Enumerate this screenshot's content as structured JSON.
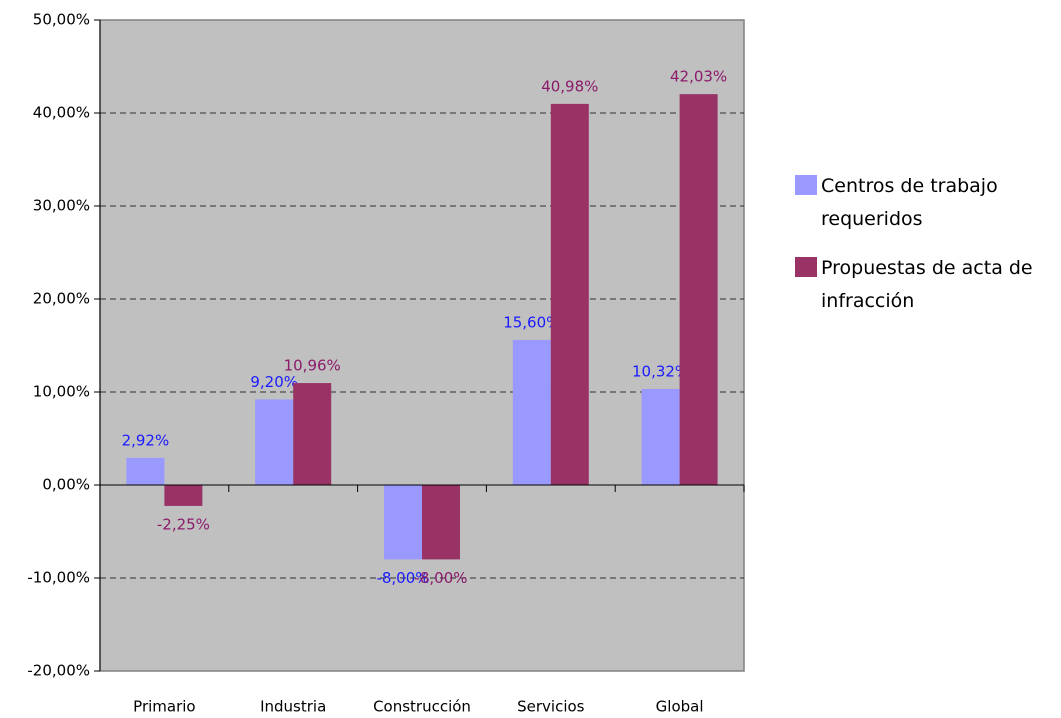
{
  "chart_data": {
    "type": "bar",
    "categories": [
      "Primario",
      "Industria",
      "Construcción",
      "Servicios",
      "Global"
    ],
    "series": [
      {
        "name": "Centros de trabajo requeridos",
        "color": "#9999ff",
        "label_color": "#1a1aff",
        "values": [
          2.92,
          9.2,
          -8,
          15.6,
          10.32
        ],
        "value_labels": [
          "2,92%",
          "9,20%",
          "-8,00%",
          "15,60%",
          "10,32%"
        ]
      },
      {
        "name": "Propuestas de acta de infracción",
        "color": "#993366",
        "label_color": "#8b1a6b",
        "values": [
          -2.25,
          10.96,
          -8,
          40.98,
          42.03
        ],
        "value_labels": [
          "-2,25%",
          "10,96%",
          "-8,00%",
          "40,98%",
          "42,03%"
        ]
      }
    ],
    "ylim": [
      -20,
      50
    ],
    "yticks": [
      {
        "value": -20,
        "label": "-20,00%"
      },
      {
        "value": -10,
        "label": "-10,00%"
      },
      {
        "value": 0,
        "label": "0,00%"
      },
      {
        "value": 10,
        "label": "10,00%"
      },
      {
        "value": 20,
        "label": "20,00%"
      },
      {
        "value": 30,
        "label": "30,00%"
      },
      {
        "value": 40,
        "label": "40,00%"
      },
      {
        "value": 50,
        "label": "50,00%"
      }
    ],
    "grid": true,
    "legend": "right",
    "plot_background": "#c0c0c0"
  }
}
